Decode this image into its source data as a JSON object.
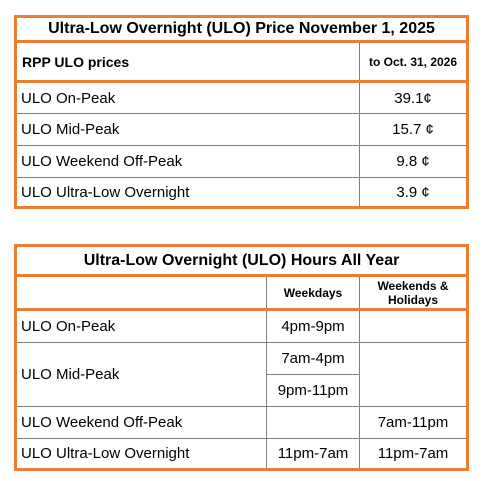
{
  "price_table": {
    "title": "Ultra-Low Overnight (ULO) Price November 1, 2025",
    "header_label": "RPP ULO prices",
    "header_period": "to Oct. 31, 2026",
    "rows": [
      {
        "label": "ULO On-Peak",
        "price": "39.1¢"
      },
      {
        "label": "ULO Mid-Peak",
        "price": "15.7 ¢"
      },
      {
        "label": "ULO Weekend Off-Peak",
        "price": "9.8 ¢"
      },
      {
        "label": "ULO Ultra-Low Overnight",
        "price": "3.9 ¢"
      }
    ]
  },
  "hours_table": {
    "title": "Ultra-Low Overnight (ULO) Hours All Year",
    "header_weekdays": "Weekdays",
    "header_weekends": "Weekends & Holidays",
    "rows": {
      "on_peak": {
        "label": "ULO On-Peak",
        "weekdays": "4pm-9pm",
        "weekends": ""
      },
      "mid_peak": {
        "label": "ULO Mid-Peak",
        "weekdays_1": "7am-4pm",
        "weekdays_2": "9pm-11pm",
        "weekends": ""
      },
      "weekend_off_peak": {
        "label": "ULO Weekend Off-Peak",
        "weekdays": "",
        "weekends": "7am-11pm"
      },
      "ultra_low": {
        "label": "ULO Ultra-Low Overnight",
        "weekdays": "11pm-7am",
        "weekends": "11pm-7am"
      }
    }
  },
  "colors": {
    "accent_border": "#ed7d31",
    "grid_line": "#7f7f7f"
  }
}
